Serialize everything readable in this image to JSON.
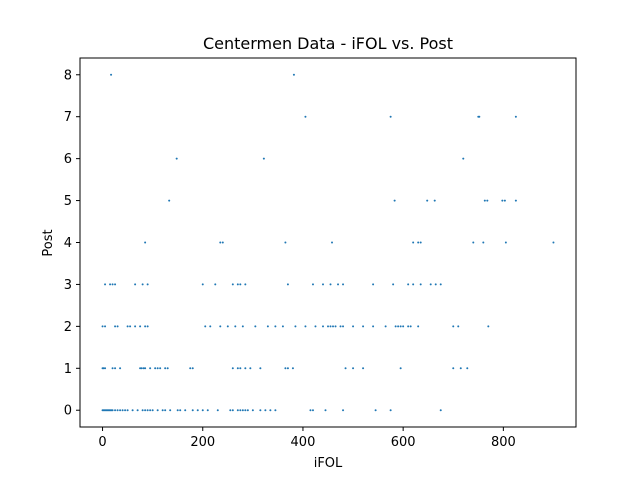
{
  "chart_data": {
    "type": "scatter",
    "title": "Centermen Data - iFOL vs. Post",
    "xlabel": "iFOL",
    "ylabel": "Post",
    "xlim": [
      -45,
      945
    ],
    "ylim": [
      -0.4,
      8.4
    ],
    "xticks": [
      0,
      200,
      400,
      600,
      800
    ],
    "yticks": [
      0,
      1,
      2,
      3,
      4,
      5,
      6,
      7,
      8
    ],
    "grid": false,
    "marker_color": "#1f77b4",
    "points": [
      {
        "x": 0,
        "y": 0
      },
      {
        "x": 2,
        "y": 0
      },
      {
        "x": 4,
        "y": 0
      },
      {
        "x": 6,
        "y": 0
      },
      {
        "x": 8,
        "y": 0
      },
      {
        "x": 10,
        "y": 0
      },
      {
        "x": 12,
        "y": 0
      },
      {
        "x": 14,
        "y": 0
      },
      {
        "x": 16,
        "y": 0
      },
      {
        "x": 18,
        "y": 0
      },
      {
        "x": 20,
        "y": 0
      },
      {
        "x": 25,
        "y": 0
      },
      {
        "x": 30,
        "y": 0
      },
      {
        "x": 35,
        "y": 0
      },
      {
        "x": 40,
        "y": 0
      },
      {
        "x": 45,
        "y": 0
      },
      {
        "x": 50,
        "y": 0
      },
      {
        "x": 60,
        "y": 0
      },
      {
        "x": 70,
        "y": 0
      },
      {
        "x": 80,
        "y": 0
      },
      {
        "x": 85,
        "y": 0
      },
      {
        "x": 90,
        "y": 0
      },
      {
        "x": 95,
        "y": 0
      },
      {
        "x": 100,
        "y": 0
      },
      {
        "x": 110,
        "y": 0
      },
      {
        "x": 120,
        "y": 0
      },
      {
        "x": 125,
        "y": 0
      },
      {
        "x": 135,
        "y": 0
      },
      {
        "x": 150,
        "y": 0
      },
      {
        "x": 155,
        "y": 0
      },
      {
        "x": 165,
        "y": 0
      },
      {
        "x": 180,
        "y": 0
      },
      {
        "x": 190,
        "y": 0
      },
      {
        "x": 200,
        "y": 0
      },
      {
        "x": 210,
        "y": 0
      },
      {
        "x": 230,
        "y": 0
      },
      {
        "x": 255,
        "y": 0
      },
      {
        "x": 260,
        "y": 0
      },
      {
        "x": 270,
        "y": 0
      },
      {
        "x": 275,
        "y": 0
      },
      {
        "x": 280,
        "y": 0
      },
      {
        "x": 285,
        "y": 0
      },
      {
        "x": 290,
        "y": 0
      },
      {
        "x": 300,
        "y": 0
      },
      {
        "x": 315,
        "y": 0
      },
      {
        "x": 325,
        "y": 0
      },
      {
        "x": 335,
        "y": 0
      },
      {
        "x": 345,
        "y": 0
      },
      {
        "x": 415,
        "y": 0
      },
      {
        "x": 420,
        "y": 0
      },
      {
        "x": 445,
        "y": 0
      },
      {
        "x": 480,
        "y": 0
      },
      {
        "x": 545,
        "y": 0
      },
      {
        "x": 575,
        "y": 0
      },
      {
        "x": 675,
        "y": 0
      },
      {
        "x": 0,
        "y": 1
      },
      {
        "x": 2,
        "y": 1
      },
      {
        "x": 5,
        "y": 1
      },
      {
        "x": 20,
        "y": 1
      },
      {
        "x": 25,
        "y": 1
      },
      {
        "x": 35,
        "y": 1
      },
      {
        "x": 75,
        "y": 1
      },
      {
        "x": 78,
        "y": 1
      },
      {
        "x": 82,
        "y": 1
      },
      {
        "x": 85,
        "y": 1
      },
      {
        "x": 95,
        "y": 1
      },
      {
        "x": 105,
        "y": 1
      },
      {
        "x": 110,
        "y": 1
      },
      {
        "x": 115,
        "y": 1
      },
      {
        "x": 125,
        "y": 1
      },
      {
        "x": 130,
        "y": 1
      },
      {
        "x": 175,
        "y": 1
      },
      {
        "x": 180,
        "y": 1
      },
      {
        "x": 260,
        "y": 1
      },
      {
        "x": 270,
        "y": 1
      },
      {
        "x": 275,
        "y": 1
      },
      {
        "x": 285,
        "y": 1
      },
      {
        "x": 295,
        "y": 1
      },
      {
        "x": 315,
        "y": 1
      },
      {
        "x": 365,
        "y": 1
      },
      {
        "x": 370,
        "y": 1
      },
      {
        "x": 380,
        "y": 1
      },
      {
        "x": 485,
        "y": 1
      },
      {
        "x": 500,
        "y": 1
      },
      {
        "x": 520,
        "y": 1
      },
      {
        "x": 595,
        "y": 1
      },
      {
        "x": 700,
        "y": 1
      },
      {
        "x": 715,
        "y": 1
      },
      {
        "x": 728,
        "y": 1
      },
      {
        "x": 0,
        "y": 2
      },
      {
        "x": 5,
        "y": 2
      },
      {
        "x": 25,
        "y": 2
      },
      {
        "x": 30,
        "y": 2
      },
      {
        "x": 50,
        "y": 2
      },
      {
        "x": 55,
        "y": 2
      },
      {
        "x": 65,
        "y": 2
      },
      {
        "x": 75,
        "y": 2
      },
      {
        "x": 85,
        "y": 2
      },
      {
        "x": 90,
        "y": 2
      },
      {
        "x": 205,
        "y": 2
      },
      {
        "x": 215,
        "y": 2
      },
      {
        "x": 235,
        "y": 2
      },
      {
        "x": 250,
        "y": 2
      },
      {
        "x": 265,
        "y": 2
      },
      {
        "x": 280,
        "y": 2
      },
      {
        "x": 305,
        "y": 2
      },
      {
        "x": 330,
        "y": 2
      },
      {
        "x": 345,
        "y": 2
      },
      {
        "x": 360,
        "y": 2
      },
      {
        "x": 385,
        "y": 2
      },
      {
        "x": 405,
        "y": 2
      },
      {
        "x": 425,
        "y": 2
      },
      {
        "x": 440,
        "y": 2
      },
      {
        "x": 450,
        "y": 2
      },
      {
        "x": 455,
        "y": 2
      },
      {
        "x": 460,
        "y": 2
      },
      {
        "x": 465,
        "y": 2
      },
      {
        "x": 475,
        "y": 2
      },
      {
        "x": 480,
        "y": 2
      },
      {
        "x": 500,
        "y": 2
      },
      {
        "x": 520,
        "y": 2
      },
      {
        "x": 540,
        "y": 2
      },
      {
        "x": 565,
        "y": 2
      },
      {
        "x": 585,
        "y": 2
      },
      {
        "x": 590,
        "y": 2
      },
      {
        "x": 595,
        "y": 2
      },
      {
        "x": 600,
        "y": 2
      },
      {
        "x": 610,
        "y": 2
      },
      {
        "x": 615,
        "y": 2
      },
      {
        "x": 630,
        "y": 2
      },
      {
        "x": 700,
        "y": 2
      },
      {
        "x": 710,
        "y": 2
      },
      {
        "x": 770,
        "y": 2
      },
      {
        "x": 5,
        "y": 3
      },
      {
        "x": 15,
        "y": 3
      },
      {
        "x": 20,
        "y": 3
      },
      {
        "x": 25,
        "y": 3
      },
      {
        "x": 65,
        "y": 3
      },
      {
        "x": 80,
        "y": 3
      },
      {
        "x": 90,
        "y": 3
      },
      {
        "x": 200,
        "y": 3
      },
      {
        "x": 225,
        "y": 3
      },
      {
        "x": 260,
        "y": 3
      },
      {
        "x": 270,
        "y": 3
      },
      {
        "x": 275,
        "y": 3
      },
      {
        "x": 285,
        "y": 3
      },
      {
        "x": 370,
        "y": 3
      },
      {
        "x": 420,
        "y": 3
      },
      {
        "x": 440,
        "y": 3
      },
      {
        "x": 455,
        "y": 3
      },
      {
        "x": 470,
        "y": 3
      },
      {
        "x": 480,
        "y": 3
      },
      {
        "x": 540,
        "y": 3
      },
      {
        "x": 580,
        "y": 3
      },
      {
        "x": 610,
        "y": 3
      },
      {
        "x": 620,
        "y": 3
      },
      {
        "x": 635,
        "y": 3
      },
      {
        "x": 655,
        "y": 3
      },
      {
        "x": 665,
        "y": 3
      },
      {
        "x": 675,
        "y": 3
      },
      {
        "x": 85,
        "y": 4
      },
      {
        "x": 235,
        "y": 4
      },
      {
        "x": 240,
        "y": 4
      },
      {
        "x": 365,
        "y": 4
      },
      {
        "x": 458,
        "y": 4
      },
      {
        "x": 620,
        "y": 4
      },
      {
        "x": 630,
        "y": 4
      },
      {
        "x": 635,
        "y": 4
      },
      {
        "x": 740,
        "y": 4
      },
      {
        "x": 760,
        "y": 4
      },
      {
        "x": 805,
        "y": 4
      },
      {
        "x": 900,
        "y": 4
      },
      {
        "x": 133,
        "y": 5
      },
      {
        "x": 583,
        "y": 5
      },
      {
        "x": 648,
        "y": 5
      },
      {
        "x": 663,
        "y": 5
      },
      {
        "x": 763,
        "y": 5
      },
      {
        "x": 768,
        "y": 5
      },
      {
        "x": 798,
        "y": 5
      },
      {
        "x": 803,
        "y": 5
      },
      {
        "x": 825,
        "y": 5
      },
      {
        "x": 148,
        "y": 6
      },
      {
        "x": 322,
        "y": 6
      },
      {
        "x": 720,
        "y": 6
      },
      {
        "x": 405,
        "y": 7
      },
      {
        "x": 575,
        "y": 7
      },
      {
        "x": 750,
        "y": 7
      },
      {
        "x": 752,
        "y": 7
      },
      {
        "x": 825,
        "y": 7
      },
      {
        "x": 17,
        "y": 8
      },
      {
        "x": 382,
        "y": 8
      }
    ]
  }
}
